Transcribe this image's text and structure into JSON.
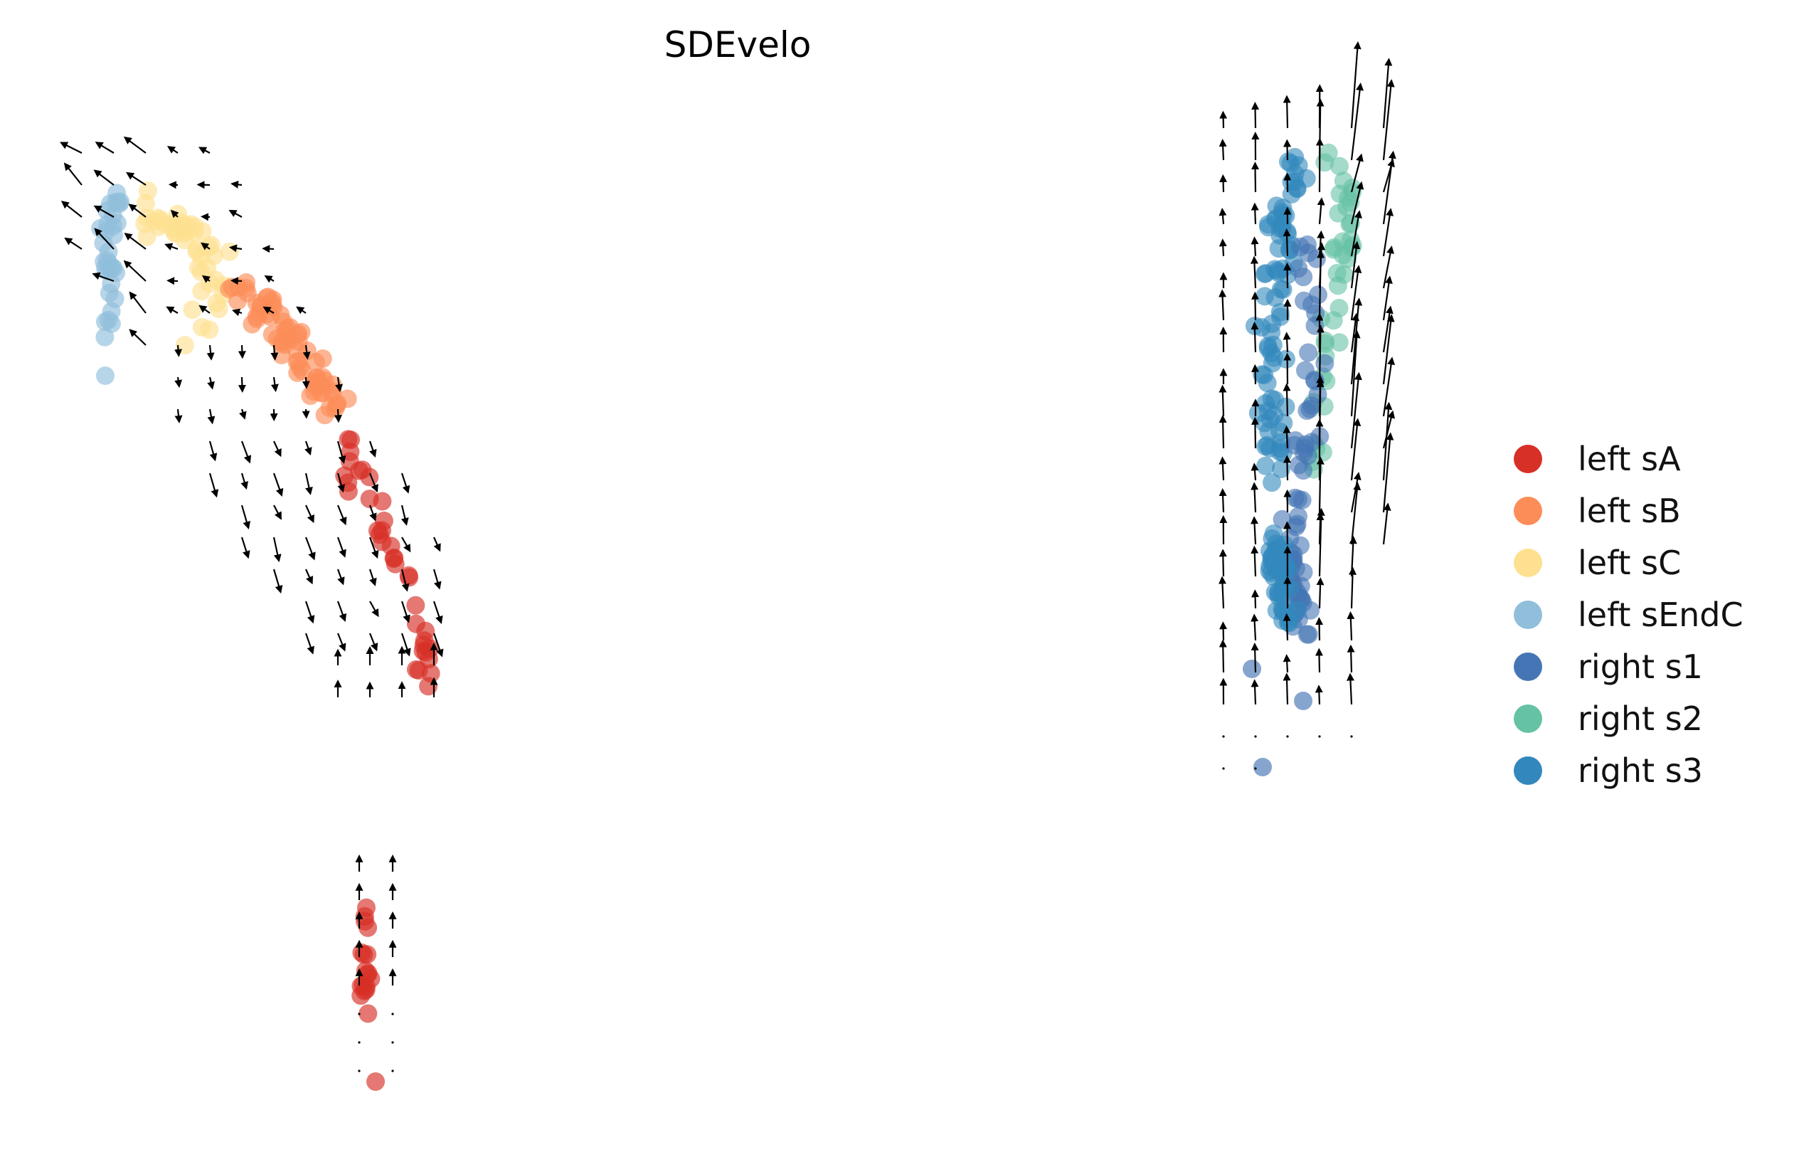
{
  "chart_data": {
    "type": "scatter",
    "title": "SDEvelo",
    "xlabel": "",
    "ylabel": "",
    "axes_visible": false,
    "grid": false,
    "legend_position": "right",
    "overlay": "velocity arrows (black)",
    "series": [
      {
        "name": "left sA",
        "color": "#d73027"
      },
      {
        "name": "left sB",
        "color": "#fc8d59"
      },
      {
        "name": "left sC",
        "color": "#fee090"
      },
      {
        "name": "left sEndC",
        "color": "#91bfdb"
      },
      {
        "name": "right s1",
        "color": "#4575b4"
      },
      {
        "name": "right s2",
        "color": "#66c2a5"
      },
      {
        "name": "right s3",
        "color": "#3288bd"
      }
    ]
  }
}
